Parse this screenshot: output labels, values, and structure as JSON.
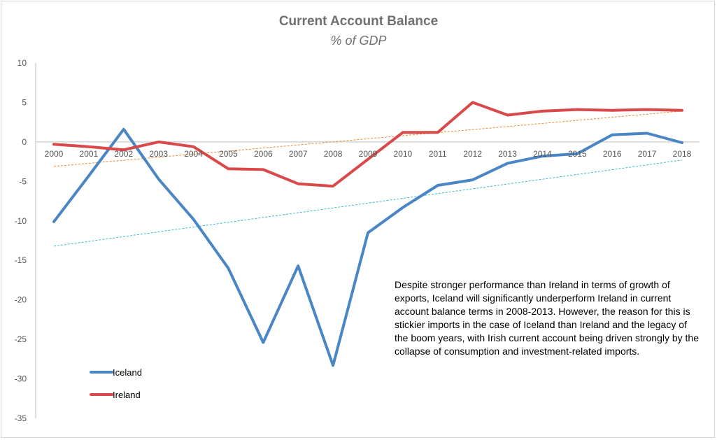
{
  "chart_data": {
    "type": "line",
    "title": "Current Account Balance",
    "subtitle": "% of GDP",
    "xlabel": "",
    "ylabel": "",
    "ylim": [
      -35,
      10
    ],
    "yticks": [
      10,
      5,
      0,
      -5,
      -10,
      -15,
      -20,
      -25,
      -30,
      -35
    ],
    "categories": [
      "2000",
      "2001",
      "2002",
      "2003",
      "2004",
      "2005",
      "2006",
      "2007",
      "2008",
      "2009",
      "2010",
      "2011",
      "2012",
      "2013",
      "2014",
      "2015",
      "2016",
      "2017",
      "2018"
    ],
    "series": [
      {
        "name": "Iceland",
        "color": "#4a86c5",
        "values": [
          -10.1,
          -4.3,
          1.6,
          -4.7,
          -9.8,
          -16.0,
          -25.4,
          -15.7,
          -28.3,
          -11.5,
          -8.3,
          -5.5,
          -4.8,
          -2.7,
          -1.8,
          -1.5,
          0.9,
          1.1,
          -0.1
        ],
        "trend": [
          -13.2,
          -2.3
        ]
      },
      {
        "name": "Ireland",
        "color": "#d9494a",
        "values": [
          -0.3,
          -0.6,
          -1.0,
          0.0,
          -0.6,
          -3.4,
          -3.5,
          -5.3,
          -5.6,
          -2.2,
          1.2,
          1.2,
          5.0,
          3.4,
          3.9,
          4.1,
          4.0,
          4.1,
          4.0
        ],
        "trend": [
          -3.1,
          3.9
        ]
      }
    ],
    "trend_colors": {
      "Iceland": "#3bbbd1",
      "Ireland": "#f08a30"
    },
    "legend": [
      "Iceland",
      "Ireland"
    ],
    "legend_position": "bottom-left",
    "annotation": "Despite stronger performance than Ireland in terms of growth of exports, Iceland will significantly underperform Ireland in current account balance terms in 2008-2013. However, the reason for this is stickier imports in the case of Iceland than Ireland and the legacy of the boom years, with Irish current account being driven strongly by the collapse of  consumption and investment-related imports."
  }
}
